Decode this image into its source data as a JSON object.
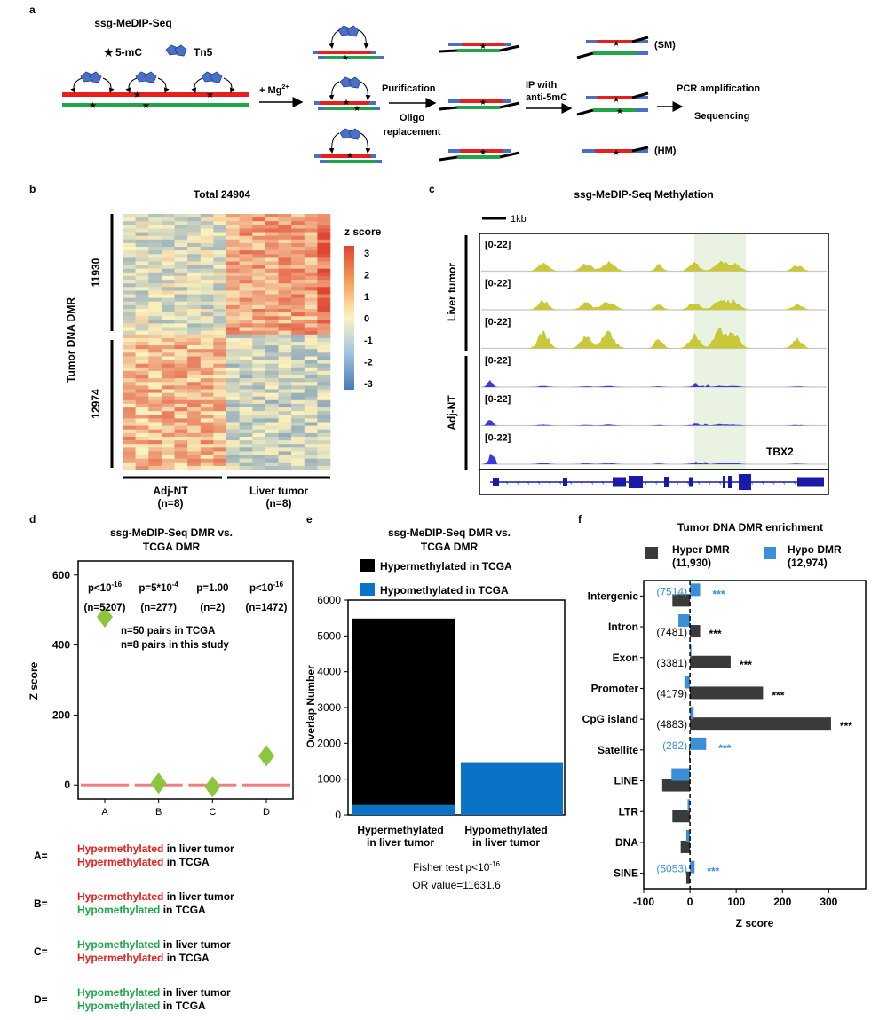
{
  "panel_labels": {
    "a": "a",
    "b": "b",
    "c": "c",
    "d": "d",
    "e": "e",
    "f": "f"
  },
  "panel_a": {
    "title": "ssg-MeDIP-Seq",
    "legend_5mc": "5-mC",
    "legend_tn5": "Tn5",
    "step_mg": "+ Mg",
    "step_mg_sup": "2+",
    "purification": "Purification",
    "oligo1": "Oligo",
    "oligo2": "replacement",
    "ip1": "IP with",
    "ip2": "anti-5mC",
    "sm": "(SM)",
    "hm": "(HM)",
    "pcr": "PCR amplification",
    "seq": "Sequencing"
  },
  "panel_b": {
    "title": "Total 24904",
    "ylabel": "Tumor DNA DMR",
    "count_hyper": "11930",
    "count_hypo": "12974",
    "group1": "Adj-NT",
    "group1_n": "(n=8)",
    "group2": "Liver tumor",
    "group2_n": "(n=8)",
    "scale_title": "z score",
    "scale_ticks": [
      "3",
      "2",
      "1",
      "0",
      "-1",
      "-2",
      "-3"
    ],
    "colors": {
      "high": "#e0452f",
      "mid": "#fbf3c0",
      "low": "#4a7bb8"
    }
  },
  "panel_c": {
    "title": "ssg-MeDIP-Seq Methylation",
    "scalebar": "1kb",
    "group_tumor": "Liver tumor",
    "group_nt": "Adj-NT",
    "track_range": "[0-22]",
    "gene": "TBX2",
    "colors": {
      "tumor": "#c8c83a",
      "nt": "#3a3ad8",
      "gene": "#1a1aa8",
      "highlight": "#eaf3e2"
    }
  },
  "panel_d": {
    "title1": "ssg-MeDIP-Seq DMR vs.",
    "title2": "TCGA DMR",
    "ylabel": "Z score",
    "yticks": [
      "0",
      "200",
      "400",
      "600"
    ],
    "categories": [
      "A",
      "B",
      "C",
      "D"
    ],
    "pvalues": [
      {
        "base": "p<10",
        "sup": "-16"
      },
      {
        "base": "p=5*10",
        "sup": "-4"
      },
      {
        "base": "p=1.00",
        "sup": ""
      },
      {
        "base": "p<10",
        "sup": "-16"
      }
    ],
    "ns": [
      "(n=5207)",
      "(n=277)",
      "(n=2)",
      "(n=1472)"
    ],
    "note1": "n=50 pairs in TCGA",
    "note2": "n=8 pairs in this study",
    "legend": [
      {
        "key": "A=",
        "l1": "Hypermethylated",
        "t1": " in liver tumor",
        "c1": "#e8201c",
        "l2": "Hypermethylated",
        "t2": " in TCGA",
        "c2": "#e8201c"
      },
      {
        "key": "B=",
        "l1": "Hypermethylated",
        "t1": " in liver tumor",
        "c1": "#e8201c",
        "l2": "Hypomethylated",
        "t2": " in TCGA",
        "c2": "#1fa64a"
      },
      {
        "key": "C=",
        "l1": "Hypomethylated",
        "t1": " in liver tumor",
        "c1": "#1fa64a",
        "l2": "Hypermethylated",
        "t2": " in TCGA",
        "c2": "#e8201c"
      },
      {
        "key": "D=",
        "l1": "Hypomethylated",
        "t1": " in liver tumor",
        "c1": "#1fa64a",
        "l2": "Hypomethylated",
        "t2": " in TCGA",
        "c2": "#1fa64a"
      }
    ]
  },
  "panel_e": {
    "title1": "ssg-MeDIP-Seq DMR vs.",
    "title2": "TCGA DMR",
    "legend_hyper": "Hypermethylated in TCGA",
    "legend_hypo": "Hypomethylated in TCGA",
    "ylabel": "Overlap Number",
    "x1a": "Hypermethylated",
    "x1b": "in liver tumor",
    "x2a": "Hypomethylated",
    "x2b": "in liver tumor",
    "fisher_base": "Fisher test p<10",
    "fisher_sup": "-16",
    "or_value": "OR value=11631.6"
  },
  "panel_f": {
    "title": "Tumor DNA DMR enrichment",
    "legend_hyper": "Hyper DMR",
    "legend_hyper_n": "(11,930)",
    "legend_hypo": "Hypo DMR",
    "legend_hypo_n": "(12,974)",
    "xlabel": "Z score",
    "colors": {
      "hyper": "#3a3a3a",
      "hypo": "#3a8fd6"
    }
  },
  "chart_data": [
    {
      "type": "scatter",
      "panel": "d",
      "categories": [
        "A",
        "B",
        "C",
        "D"
      ],
      "values": [
        480,
        5,
        -5,
        83
      ],
      "ylim": [
        -40,
        640
      ],
      "yticks": [
        0,
        200,
        400,
        600
      ],
      "colors": {
        "points": "#8cc63f",
        "null": "#f08080"
      }
    },
    {
      "type": "bar",
      "panel": "e",
      "categories": [
        "Hypermethylated in liver tumor",
        "Hypomethylated in liver tumor"
      ],
      "series": [
        {
          "name": "Hypermethylated in TCGA",
          "values": [
            5207,
            2
          ],
          "color": "#000000"
        },
        {
          "name": "Hypomethylated in TCGA",
          "values": [
            277,
            1472
          ],
          "color": "#0a73c8"
        }
      ],
      "ylim": [
        0,
        6000
      ],
      "yticks": [
        0,
        1000,
        2000,
        3000,
        4000,
        5000,
        6000
      ]
    },
    {
      "type": "bar",
      "panel": "f",
      "orientation": "horizontal",
      "categories": [
        "Intergenic",
        "Intron",
        "Exon",
        "Promoter",
        "CpG island",
        "Satellite",
        "LINE",
        "LTR",
        "DNA",
        "SINE"
      ],
      "series": [
        {
          "name": "Hyper DMR",
          "values": [
            -38,
            22,
            88,
            158,
            305,
            -2,
            -60,
            -38,
            -20,
            -8
          ]
        },
        {
          "name": "Hypo DMR",
          "values": [
            22,
            -25,
            3,
            -12,
            8,
            35,
            -40,
            -5,
            -8,
            10
          ]
        }
      ],
      "counts_hyper": {
        "Intron": "(7481)",
        "Exon": "(3381)",
        "Promoter": "(4179)",
        "CpG island": "(4883)"
      },
      "counts_hypo": {
        "Intergenic": "(7514)",
        "Satellite": "(282)",
        "SINE": "(5053)"
      },
      "sig_hyper": [
        "Intron",
        "Exon",
        "Promoter",
        "CpG island"
      ],
      "sig_hypo": [
        "Intergenic",
        "Satellite",
        "SINE"
      ],
      "sig_label": "***",
      "xlim": [
        -100,
        380
      ],
      "xticks": [
        -100,
        0,
        100,
        200,
        300
      ]
    }
  ]
}
